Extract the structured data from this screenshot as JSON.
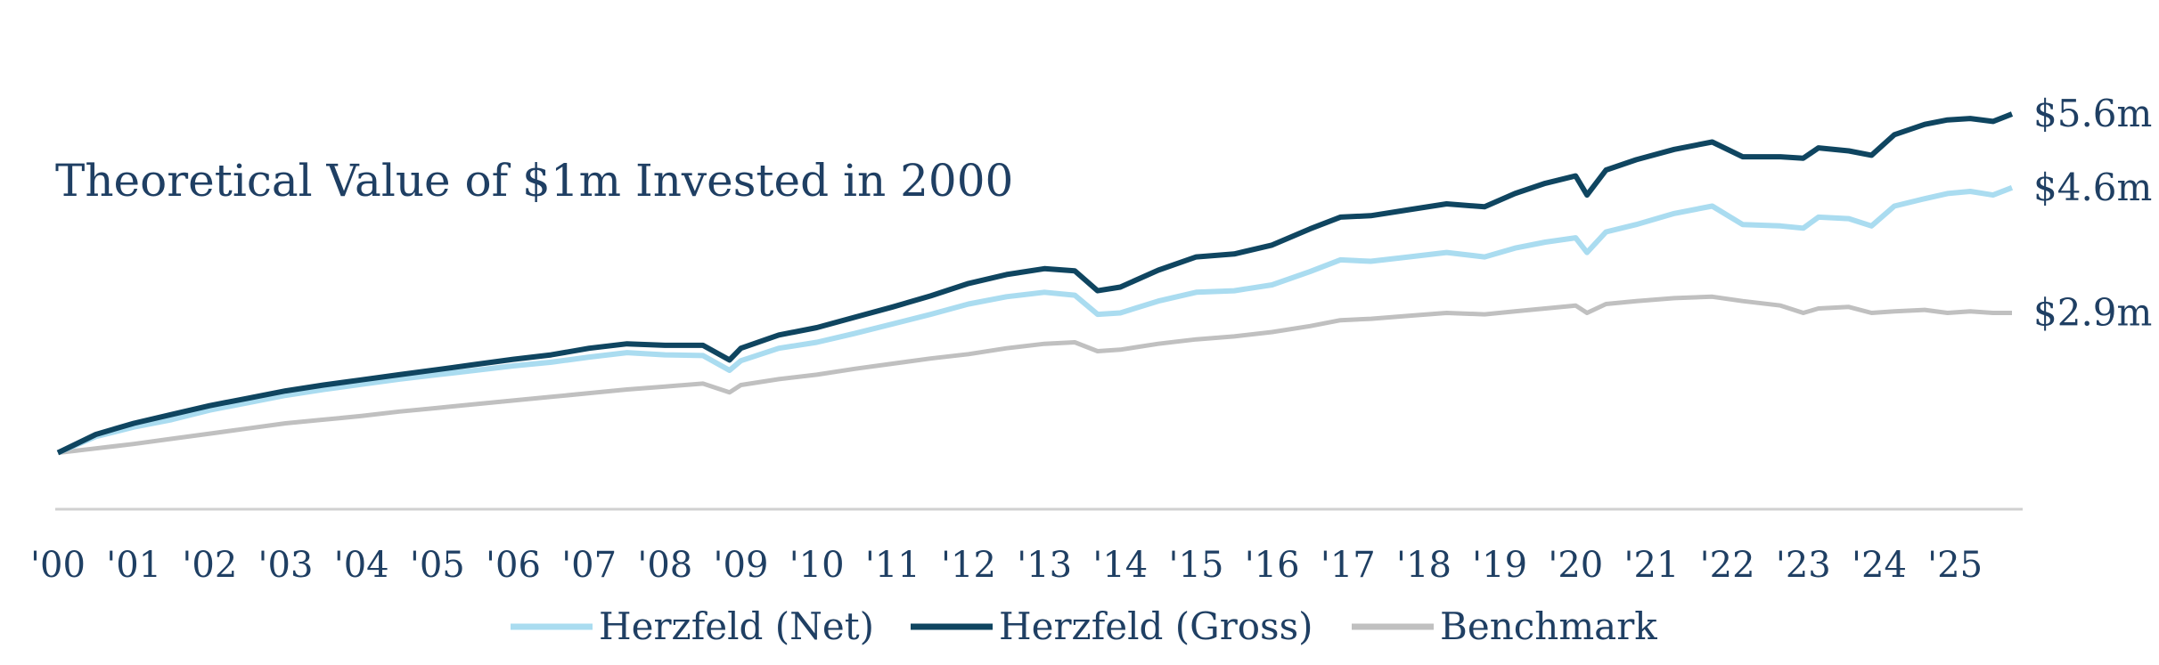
{
  "chart_data": {
    "type": "line",
    "title": "Theoretical Value of $1m Invested in 2000",
    "xlabel": "",
    "ylabel": "",
    "x_tick_labels": [
      "'00",
      "'01",
      "'02",
      "'03",
      "'04",
      "'05",
      "'06",
      "'07",
      "'08",
      "'09",
      "'10",
      "'11",
      "'12",
      "'13",
      "'14",
      "'15",
      "'16",
      "'17",
      "'18",
      "'19",
      "'20",
      "'21",
      "'22",
      "'23",
      "'24",
      "'25"
    ],
    "x_range": [
      2000,
      2025.75
    ],
    "y_range": [
      0.5,
      6.0
    ],
    "grid": false,
    "legend_position": "bottom",
    "series": [
      {
        "name": "Herzfeld (Net)",
        "color": "#aadcf0",
        "end_label": "$4.6m",
        "points": [
          [
            2000,
            1.0
          ],
          [
            2000.5,
            1.22
          ],
          [
            2001,
            1.35
          ],
          [
            2001.5,
            1.45
          ],
          [
            2002,
            1.58
          ],
          [
            2002.5,
            1.68
          ],
          [
            2003,
            1.78
          ],
          [
            2003.5,
            1.86
          ],
          [
            2004,
            1.93
          ],
          [
            2004.5,
            2.0
          ],
          [
            2005,
            2.06
          ],
          [
            2005.5,
            2.12
          ],
          [
            2006,
            2.18
          ],
          [
            2006.5,
            2.23
          ],
          [
            2007,
            2.3
          ],
          [
            2007.5,
            2.36
          ],
          [
            2008,
            2.33
          ],
          [
            2008.5,
            2.32
          ],
          [
            2008.85,
            2.12
          ],
          [
            2009,
            2.25
          ],
          [
            2009.5,
            2.42
          ],
          [
            2010,
            2.5
          ],
          [
            2010.5,
            2.62
          ],
          [
            2011,
            2.75
          ],
          [
            2011.5,
            2.88
          ],
          [
            2012,
            3.02
          ],
          [
            2012.5,
            3.12
          ],
          [
            2013,
            3.18
          ],
          [
            2013.4,
            3.14
          ],
          [
            2013.7,
            2.88
          ],
          [
            2014,
            2.9
          ],
          [
            2014.5,
            3.06
          ],
          [
            2015,
            3.18
          ],
          [
            2015.5,
            3.2
          ],
          [
            2016,
            3.28
          ],
          [
            2016.5,
            3.46
          ],
          [
            2016.9,
            3.62
          ],
          [
            2017.3,
            3.6
          ],
          [
            2017.8,
            3.66
          ],
          [
            2018.3,
            3.72
          ],
          [
            2018.8,
            3.66
          ],
          [
            2019.2,
            3.78
          ],
          [
            2019.6,
            3.86
          ],
          [
            2020,
            3.92
          ],
          [
            2020.15,
            3.72
          ],
          [
            2020.4,
            4.0
          ],
          [
            2020.8,
            4.1
          ],
          [
            2021.3,
            4.25
          ],
          [
            2021.8,
            4.35
          ],
          [
            2022.2,
            4.1
          ],
          [
            2022.7,
            4.08
          ],
          [
            2023,
            4.05
          ],
          [
            2023.2,
            4.2
          ],
          [
            2023.6,
            4.18
          ],
          [
            2023.9,
            4.08
          ],
          [
            2024.2,
            4.35
          ],
          [
            2024.6,
            4.45
          ],
          [
            2024.9,
            4.52
          ],
          [
            2025.2,
            4.55
          ],
          [
            2025.5,
            4.5
          ],
          [
            2025.75,
            4.6
          ]
        ]
      },
      {
        "name": "Herzfeld (Gross)",
        "color": "#0f4560",
        "end_label": "$5.6m",
        "points": [
          [
            2000,
            1.0
          ],
          [
            2000.5,
            1.25
          ],
          [
            2001,
            1.4
          ],
          [
            2001.5,
            1.52
          ],
          [
            2002,
            1.64
          ],
          [
            2002.5,
            1.74
          ],
          [
            2003,
            1.84
          ],
          [
            2003.5,
            1.92
          ],
          [
            2004,
            1.99
          ],
          [
            2004.5,
            2.06
          ],
          [
            2005,
            2.13
          ],
          [
            2005.5,
            2.2
          ],
          [
            2006,
            2.27
          ],
          [
            2006.5,
            2.33
          ],
          [
            2007,
            2.42
          ],
          [
            2007.5,
            2.48
          ],
          [
            2008,
            2.46
          ],
          [
            2008.5,
            2.46
          ],
          [
            2008.85,
            2.26
          ],
          [
            2009,
            2.42
          ],
          [
            2009.5,
            2.6
          ],
          [
            2010,
            2.7
          ],
          [
            2010.5,
            2.84
          ],
          [
            2011,
            2.98
          ],
          [
            2011.5,
            3.13
          ],
          [
            2012,
            3.3
          ],
          [
            2012.5,
            3.42
          ],
          [
            2013,
            3.5
          ],
          [
            2013.4,
            3.47
          ],
          [
            2013.7,
            3.2
          ],
          [
            2014,
            3.25
          ],
          [
            2014.5,
            3.48
          ],
          [
            2015,
            3.66
          ],
          [
            2015.5,
            3.7
          ],
          [
            2016,
            3.82
          ],
          [
            2016.5,
            4.04
          ],
          [
            2016.9,
            4.2
          ],
          [
            2017.3,
            4.22
          ],
          [
            2017.8,
            4.3
          ],
          [
            2018.3,
            4.38
          ],
          [
            2018.8,
            4.34
          ],
          [
            2019.2,
            4.52
          ],
          [
            2019.6,
            4.66
          ],
          [
            2020,
            4.76
          ],
          [
            2020.15,
            4.5
          ],
          [
            2020.4,
            4.84
          ],
          [
            2020.8,
            4.98
          ],
          [
            2021.3,
            5.12
          ],
          [
            2021.8,
            5.22
          ],
          [
            2022.2,
            5.02
          ],
          [
            2022.7,
            5.02
          ],
          [
            2023,
            5.0
          ],
          [
            2023.2,
            5.14
          ],
          [
            2023.6,
            5.1
          ],
          [
            2023.9,
            5.04
          ],
          [
            2024.2,
            5.32
          ],
          [
            2024.6,
            5.46
          ],
          [
            2024.9,
            5.52
          ],
          [
            2025.2,
            5.54
          ],
          [
            2025.5,
            5.5
          ],
          [
            2025.75,
            5.6
          ]
        ]
      },
      {
        "name": "Benchmark",
        "color": "#c0c0c0",
        "end_label": "$2.9m",
        "points": [
          [
            2000,
            1.0
          ],
          [
            2000.5,
            1.06
          ],
          [
            2001,
            1.12
          ],
          [
            2001.5,
            1.19
          ],
          [
            2002,
            1.26
          ],
          [
            2002.5,
            1.33
          ],
          [
            2003,
            1.4
          ],
          [
            2003.5,
            1.45
          ],
          [
            2004,
            1.5
          ],
          [
            2004.5,
            1.56
          ],
          [
            2005,
            1.61
          ],
          [
            2005.5,
            1.66
          ],
          [
            2006,
            1.71
          ],
          [
            2006.5,
            1.76
          ],
          [
            2007,
            1.81
          ],
          [
            2007.5,
            1.86
          ],
          [
            2008,
            1.9
          ],
          [
            2008.5,
            1.94
          ],
          [
            2008.85,
            1.82
          ],
          [
            2009,
            1.92
          ],
          [
            2009.5,
            2.0
          ],
          [
            2010,
            2.06
          ],
          [
            2010.5,
            2.14
          ],
          [
            2011,
            2.21
          ],
          [
            2011.5,
            2.28
          ],
          [
            2012,
            2.34
          ],
          [
            2012.5,
            2.42
          ],
          [
            2013,
            2.48
          ],
          [
            2013.4,
            2.5
          ],
          [
            2013.7,
            2.38
          ],
          [
            2014,
            2.4
          ],
          [
            2014.5,
            2.48
          ],
          [
            2015,
            2.54
          ],
          [
            2015.5,
            2.58
          ],
          [
            2016,
            2.64
          ],
          [
            2016.5,
            2.72
          ],
          [
            2016.9,
            2.8
          ],
          [
            2017.3,
            2.82
          ],
          [
            2017.8,
            2.86
          ],
          [
            2018.3,
            2.9
          ],
          [
            2018.8,
            2.88
          ],
          [
            2019.2,
            2.92
          ],
          [
            2019.6,
            2.96
          ],
          [
            2020,
            3.0
          ],
          [
            2020.15,
            2.9
          ],
          [
            2020.4,
            3.02
          ],
          [
            2020.8,
            3.06
          ],
          [
            2021.3,
            3.1
          ],
          [
            2021.8,
            3.12
          ],
          [
            2022.2,
            3.06
          ],
          [
            2022.7,
            3.0
          ],
          [
            2023,
            2.9
          ],
          [
            2023.2,
            2.96
          ],
          [
            2023.6,
            2.98
          ],
          [
            2023.9,
            2.9
          ],
          [
            2024.2,
            2.92
          ],
          [
            2024.6,
            2.94
          ],
          [
            2024.9,
            2.9
          ],
          [
            2025.2,
            2.92
          ],
          [
            2025.5,
            2.9
          ],
          [
            2025.75,
            2.9
          ]
        ]
      }
    ]
  }
}
